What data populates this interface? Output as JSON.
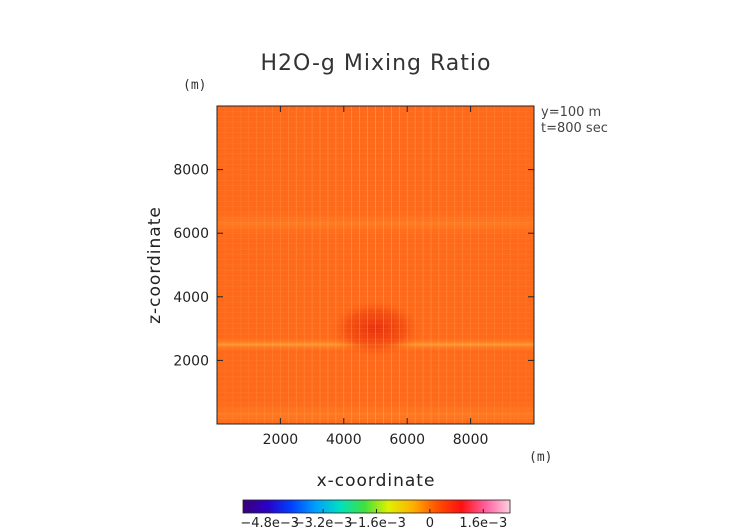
{
  "chart_data": {
    "type": "heatmap",
    "title": "H2O-g Mixing Ratio",
    "xlabel": "x-coordinate",
    "ylabel": "z-coordinate",
    "x_unit": "(m)",
    "y_unit": "(m)",
    "xlim": [
      0,
      10000
    ],
    "ylim": [
      0,
      10000
    ],
    "x_ticks": [
      "2000",
      "4000",
      "6000",
      "8000"
    ],
    "y_ticks": [
      "2000",
      "4000",
      "6000",
      "8000"
    ],
    "annotations": [
      "y=100 m",
      "t=800 sec"
    ],
    "grid": false,
    "colorbar": {
      "range": [
        -0.0056,
        0.0024
      ],
      "ticks": [
        {
          "value": -0.0048,
          "label": "−4.8e−3"
        },
        {
          "value": -0.0032,
          "label": "−3.2e−3"
        },
        {
          "value": -0.0016,
          "label": "−1.6e−3"
        },
        {
          "value": 0,
          "label": "0"
        },
        {
          "value": 0.0016,
          "label": "1.6e−3"
        }
      ]
    },
    "field": {
      "background": 0.0008,
      "features": [
        {
          "kind": "horizontal_band",
          "z": 2500,
          "value": 0.0012
        },
        {
          "kind": "blob",
          "x": 5000,
          "z": 3000,
          "value": 0.0015
        },
        {
          "kind": "horizontal_band",
          "z": 6300,
          "value": 0.0009
        },
        {
          "kind": "horizontal_band",
          "z": 300,
          "value": 0.0009
        }
      ]
    }
  },
  "colors": {
    "background_field": "#ff6a1a",
    "band": "#ff8a2a",
    "blob": "#f03a12",
    "colormap": [
      "#3b0078",
      "#2a00c8",
      "#0040ff",
      "#00a0ff",
      "#00e0c0",
      "#40e040",
      "#e0f000",
      "#ffb000",
      "#ff5000",
      "#ff1010",
      "#ff60a0",
      "#ffd0e0"
    ]
  }
}
